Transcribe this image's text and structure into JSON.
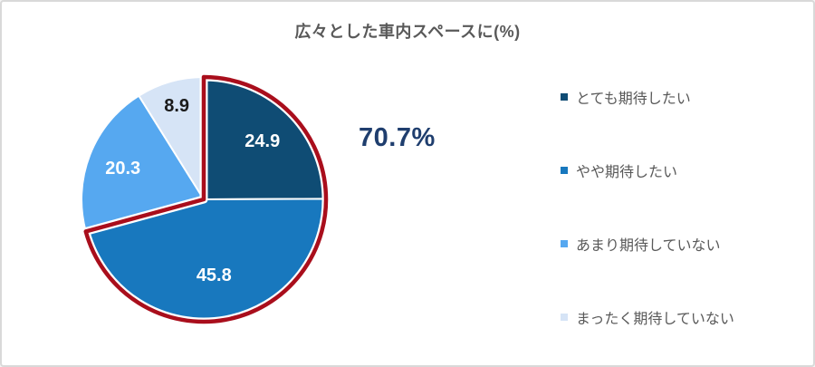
{
  "frame": {
    "background": "#FFFFFF",
    "border_color": "#D9D9D9"
  },
  "chart_data": {
    "type": "pie",
    "title": "広々とした車内スペースに(%)",
    "title_color": "#595959",
    "unit": "%",
    "start_angle_deg": 0,
    "direction": "clockwise",
    "slices": [
      {
        "label": "とても期待したい",
        "value": 24.9,
        "color": "#0F4C74",
        "label_color": "#FFFFFF",
        "label_r": 0.68
      },
      {
        "label": "やや期待したい",
        "value": 45.8,
        "color": "#1878BE",
        "label_color": "#FFFFFF",
        "label_r": 0.62
      },
      {
        "label": "あまり期待していない",
        "value": 20.3,
        "color": "#56A8F0",
        "label_color": "#FFFFFF",
        "label_r": 0.71
      },
      {
        "label": "まったく期待していない",
        "value": 8.9,
        "color": "#D6E4F6",
        "label_color": "#1A1A1A",
        "label_r": 0.8
      }
    ],
    "highlight": {
      "slice_indices": [
        0,
        1
      ],
      "label": "70.7%",
      "outline_color": "#A90E1C",
      "label_color": "#1F3E6E"
    },
    "legend": {
      "position": "right",
      "text_color": "#595959"
    }
  }
}
